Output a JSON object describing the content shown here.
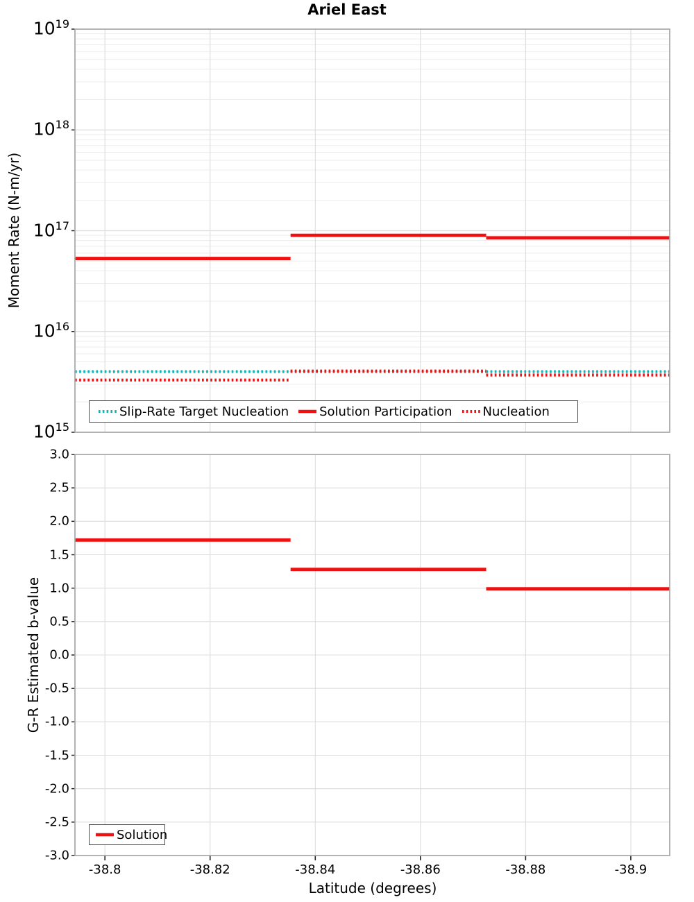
{
  "figure_title": "Ariel East",
  "colors": {
    "red": "#ee1111",
    "teal": "#14b4b4",
    "grid_minor": "#ededed",
    "grid_major": "#dcdcdc",
    "spine": "#a6a6a6",
    "tick_mark": "#222222",
    "text": "#000000",
    "legend_border": "#4d4d4d"
  },
  "chart_data": [
    {
      "type": "line",
      "id": "moment-rate-chart",
      "title": "Ariel East",
      "ylabel": "Moment Rate (N-m/yr)",
      "yscale": "log",
      "ylim": [
        1000000000000000.0,
        1e+19
      ],
      "ytick_exponents": [
        15,
        16,
        17,
        18,
        19
      ],
      "xlim": [
        -38.7943,
        -38.9074
      ],
      "xticks": [
        -38.8,
        -38.82,
        -38.84,
        -38.86,
        -38.88,
        -38.9
      ],
      "xtick_labels": [
        "-38.8",
        "-38.82",
        "-38.84",
        "-38.86",
        "-38.88",
        "-38.9"
      ],
      "show_xtick_labels": false,
      "grid": true,
      "segment_bounds": [
        -38.7943,
        -38.8353,
        -38.8725,
        -38.9074
      ],
      "series": [
        {
          "name": "Slip-Rate Target Nucleation",
          "style": "dotted",
          "color_key": "teal",
          "values": [
            4000000000000000.0,
            4000000000000000.0,
            4000000000000000.0
          ]
        },
        {
          "name": "Solution Participation",
          "style": "solid",
          "color_key": "red",
          "values": [
            5.3e+16,
            9e+16,
            8.5e+16
          ]
        },
        {
          "name": "Nucleation",
          "style": "dotted",
          "color_key": "red",
          "values": [
            3300000000000000.0,
            4050000000000000.0,
            3700000000000000.0
          ]
        }
      ],
      "legend_entries": [
        "Slip-Rate Target Nucleation",
        "Solution Participation",
        "Nucleation"
      ],
      "legend_position": "bottom-inside"
    },
    {
      "type": "line",
      "id": "b-value-chart",
      "ylabel": "G-R Estimated b-value",
      "xlabel": "Latitude (degrees)",
      "yscale": "linear",
      "ylim": [
        -3.0,
        3.0
      ],
      "ytick_step": 0.5,
      "ytick_labels": [
        "3.0",
        "2.5",
        "2.0",
        "1.5",
        "1.0",
        "0.5",
        "0.0",
        "-0.5",
        "-1.0",
        "-1.5",
        "-2.0",
        "-2.5",
        "-3.0"
      ],
      "xlim": [
        -38.7943,
        -38.9074
      ],
      "xticks": [
        -38.8,
        -38.82,
        -38.84,
        -38.86,
        -38.88,
        -38.9
      ],
      "xtick_labels": [
        "-38.8",
        "-38.82",
        "-38.84",
        "-38.86",
        "-38.88",
        "-38.9"
      ],
      "show_xtick_labels": true,
      "grid": true,
      "segment_bounds": [
        -38.7943,
        -38.8353,
        -38.8725,
        -38.9074
      ],
      "series": [
        {
          "name": "Solution",
          "style": "solid",
          "color_key": "red",
          "values": [
            1.72,
            1.28,
            0.99
          ]
        }
      ],
      "legend_entries": [
        "Solution"
      ],
      "legend_position": "bottom-left-inside"
    }
  ]
}
